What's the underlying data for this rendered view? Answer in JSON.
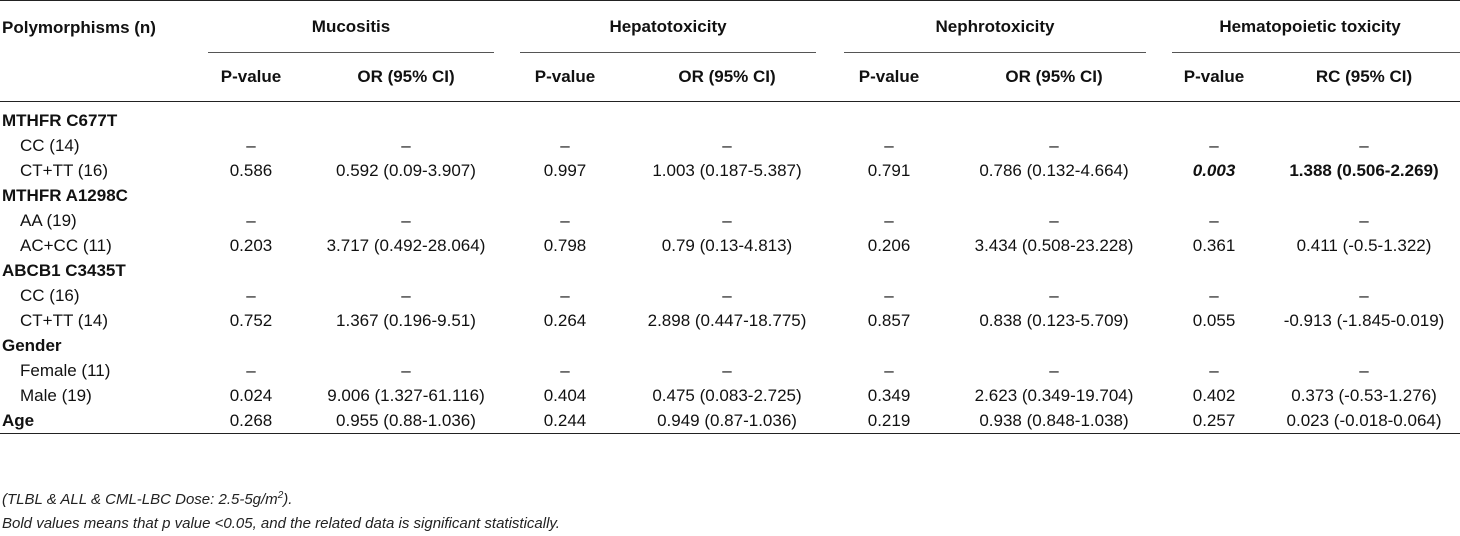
{
  "headers": {
    "first": "Polymorphisms (n)",
    "groups": [
      "Mucositis",
      "Hepatotoxicity",
      "Nephrotoxicity",
      "Hematopoietic toxicity"
    ],
    "sub": [
      "P-value",
      "OR (95% CI)",
      "P-value",
      "OR (95% CI)",
      "P-value",
      "OR (95% CI)",
      "P-value",
      "RC (95% CI)"
    ]
  },
  "sections": [
    {
      "title": "MTHFR C677T",
      "rows": [
        {
          "label": "CC (14)",
          "cells": [
            "–",
            "–",
            "–",
            "–",
            "–",
            "–",
            "–",
            "–"
          ]
        },
        {
          "label": "CT+TT (16)",
          "cells": [
            "0.586",
            "0.592 (0.09-3.907)",
            "0.997",
            "1.003 (0.187-5.387)",
            "0.791",
            "0.786 (0.132-4.664)",
            "0.003",
            "1.388 (0.506-2.269)"
          ]
        }
      ]
    },
    {
      "title": "MTHFR A1298C",
      "rows": [
        {
          "label": "AA (19)",
          "cells": [
            "–",
            "–",
            "–",
            "–",
            "–",
            "–",
            "–",
            "–"
          ]
        },
        {
          "label": "AC+CC (11)",
          "cells": [
            "0.203",
            "3.717 (0.492-28.064)",
            "0.798",
            "0.79 (0.13-4.813)",
            "0.206",
            "3.434 (0.508-23.228)",
            "0.361",
            "0.411 (-0.5-1.322)"
          ]
        }
      ]
    },
    {
      "title": "ABCB1 C3435T",
      "rows": [
        {
          "label": "CC (16)",
          "cells": [
            "–",
            "–",
            "–",
            "–",
            "–",
            "–",
            "–",
            "–"
          ]
        },
        {
          "label": "CT+TT (14)",
          "cells": [
            "0.752",
            "1.367 (0.196-9.51)",
            "0.264",
            "2.898 (0.447-18.775)",
            "0.857",
            "0.838 (0.123-5.709)",
            "0.055",
            "-0.913 (-1.845-0.019)"
          ]
        }
      ]
    },
    {
      "title": "Gender",
      "rows": [
        {
          "label": "Female (11)",
          "cells": [
            "–",
            "–",
            "–",
            "–",
            "–",
            "–",
            "–",
            "–"
          ]
        },
        {
          "label": "Male (19)",
          "cells": [
            "0.024",
            "9.006 (1.327-61.116)",
            "0.404",
            "0.475 (0.083-2.725)",
            "0.349",
            "2.623 (0.349-19.704)",
            "0.402",
            "0.373 (-0.53-1.276)"
          ]
        }
      ]
    }
  ],
  "age": {
    "label": "Age",
    "cells": [
      "0.268",
      "0.955 (0.88-1.036)",
      "0.244",
      "0.949 (0.87-1.036)",
      "0.219",
      "0.938 (0.848-1.038)",
      "0.257",
      "0.023 (-0.018-0.064)"
    ]
  },
  "notes": {
    "line1_main": "(TLBL & ALL & CML-LBC Dose: 2.5-5g/m",
    "line1_sup": "2",
    "line1_end": ").",
    "line2": "Bold values means that p value <0.05, and the related data is significant statistically."
  }
}
